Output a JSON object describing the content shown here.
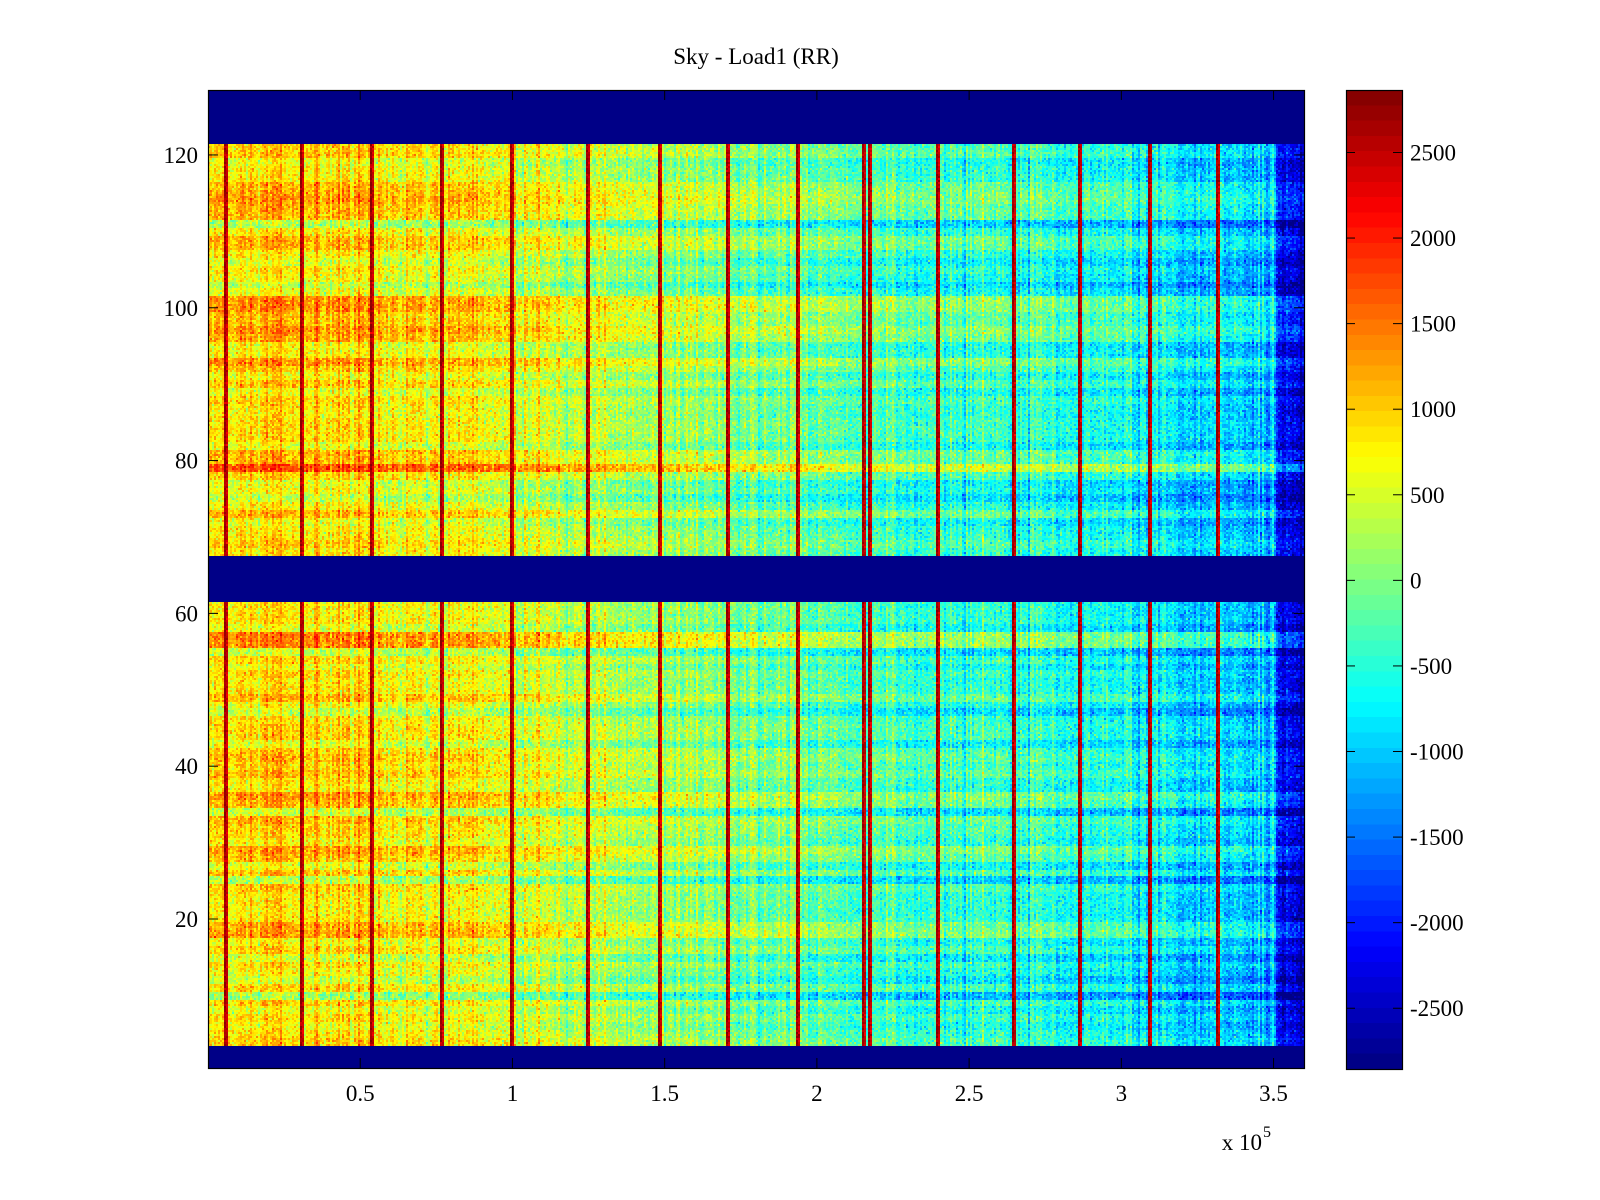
{
  "chart_data": {
    "type": "heatmap",
    "title": "Sky - Load1 (RR)",
    "xlabel": "",
    "ylabel": "",
    "xlim": [
      0,
      360000
    ],
    "ylim": [
      0.5,
      128.5
    ],
    "x_ticks": [
      50000,
      100000,
      150000,
      200000,
      250000,
      300000,
      350000
    ],
    "x_tick_labels": [
      "0.5",
      "1",
      "1.5",
      "2",
      "2.5",
      "3",
      "3.5"
    ],
    "x_exponent_label": {
      "base": "x 10",
      "exponent": "5"
    },
    "y_ticks": [
      20,
      40,
      60,
      80,
      100,
      120
    ],
    "y_tick_labels": [
      "20",
      "40",
      "60",
      "80",
      "100",
      "120"
    ],
    "grid": false,
    "colormap": "jet",
    "colorbar": {
      "range": [
        -2855,
        2865
      ],
      "ticks": [
        2500,
        2000,
        1500,
        1000,
        500,
        0,
        -500,
        -1000,
        -1500,
        -2000,
        -2500
      ],
      "tick_labels": [
        "2500",
        "2000",
        "1500",
        "1000",
        "500",
        "0",
        "-500",
        "-1000",
        "-1500",
        "-2000",
        "-2500"
      ],
      "location": "right"
    },
    "rows": {
      "count": 128,
      "masked_rows_value": -2855,
      "masked_row_ranges": [
        [
          1,
          3
        ],
        [
          62,
          67
        ],
        [
          122,
          128
        ]
      ]
    },
    "trend": {
      "description_values_left_to_right": [
        {
          "x": 0,
          "value": 900
        },
        {
          "x": 80000,
          "value": 700
        },
        {
          "x": 150000,
          "value": 150
        },
        {
          "x": 220000,
          "value": -350
        },
        {
          "x": 300000,
          "value": -700
        },
        {
          "x": 350000,
          "value": -1200
        },
        {
          "x": 352000,
          "value": -2300
        },
        {
          "x": 360000,
          "value": -2500
        }
      ],
      "warm_rows": [
        96,
        97,
        98,
        99,
        100,
        101,
        113,
        114,
        115,
        116,
        78,
        79,
        80,
        81,
        18,
        19,
        35,
        36
      ],
      "cold_rows": [
        34,
        15,
        10
      ]
    },
    "spike_columns_x": [
      5000,
      30000,
      53000,
      76000,
      99000,
      124000,
      148000,
      170000,
      193000,
      215000,
      217000,
      239000,
      264000,
      286000,
      309000,
      331000
    ],
    "spike_value": 2700
  }
}
